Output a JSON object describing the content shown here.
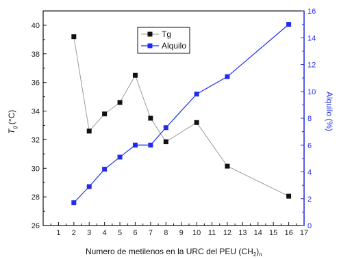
{
  "chart_data": {
    "type": "line",
    "title": "",
    "xlabel": "Numero de metilenos en la URC del PEU (CH",
    "xlabel_sub": "2",
    "xlabel_end": ")",
    "xlabel_sub2": "n",
    "ylabel_left_main": "T",
    "ylabel_left_sub": "g",
    "ylabel_left_end": "(°C)",
    "ylabel_right": "Alquilo (%)",
    "xlim": [
      0,
      17
    ],
    "ylim_left": [
      26,
      41
    ],
    "ylim_right": [
      0,
      16
    ],
    "x_ticks": [
      1,
      2,
      3,
      4,
      5,
      6,
      7,
      8,
      9,
      10,
      11,
      12,
      13,
      14,
      15,
      16,
      17
    ],
    "y_left_ticks": [
      26,
      28,
      30,
      32,
      34,
      36,
      38,
      40
    ],
    "y_right_ticks": [
      0,
      2,
      4,
      6,
      8,
      10,
      12,
      14,
      16
    ],
    "grid": false,
    "legend_position": "top-center",
    "series": [
      {
        "name": "Tg",
        "axis": "left",
        "color": "#9a9a9a",
        "marker_color": "#111111",
        "marker": "square",
        "x": [
          2,
          3,
          4,
          5,
          6,
          7,
          8,
          10,
          12,
          16
        ],
        "y": [
          39.2,
          32.6,
          33.8,
          34.6,
          36.5,
          33.5,
          31.85,
          33.2,
          30.15,
          28.05
        ]
      },
      {
        "name": "Alquilo",
        "axis": "right",
        "color": "#1f2cf0",
        "marker_color": "#1f2cf0",
        "marker": "square",
        "x": [
          2,
          3,
          4,
          5,
          6,
          7,
          8,
          10,
          12,
          16
        ],
        "y": [
          1.7,
          2.9,
          4.2,
          5.1,
          6.0,
          6.0,
          7.3,
          9.8,
          11.1,
          15.0
        ]
      }
    ],
    "colors": {
      "left_axis": "#111111",
      "right_axis": "#1f2cf0",
      "frame": "#111111"
    }
  }
}
